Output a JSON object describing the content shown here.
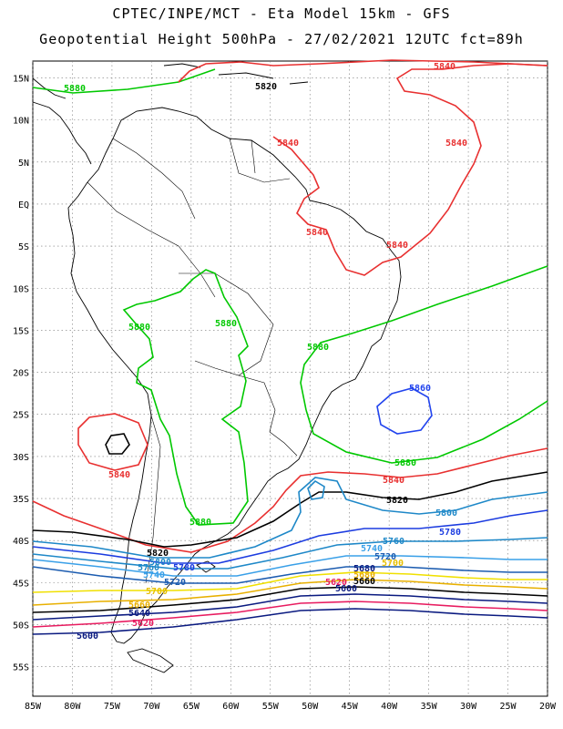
{
  "title": {
    "line1": "CPTEC/INPE/MCT -  Eta Model 15km - GFS",
    "line2": "Geopotential Height 500hPa - 27/02/2021 12UTC fct=89h"
  },
  "axes": {
    "lon_labels": [
      "85W",
      "80W",
      "75W",
      "70W",
      "65W",
      "60W",
      "55W",
      "50W",
      "45W",
      "40W",
      "35W",
      "30W",
      "25W",
      "20W"
    ],
    "lat_labels": [
      "15N",
      "10N",
      "5N",
      "EQ",
      "5S",
      "10S",
      "15S",
      "20S",
      "25S",
      "30S",
      "35S",
      "40S",
      "45S",
      "50S",
      "55S"
    ]
  },
  "contours": [
    {
      "value": "5880",
      "color": "#00c800"
    },
    {
      "value": "5860",
      "color": "#2244ee"
    },
    {
      "value": "5840",
      "color": "#e83030"
    },
    {
      "value": "5820",
      "color": "#000000"
    },
    {
      "value": "5800",
      "color": "#1e88c8"
    },
    {
      "value": "5780",
      "color": "#1c3ce0"
    },
    {
      "value": "5760",
      "color": "#1e88c8"
    },
    {
      "value": "5740",
      "color": "#3aa0e8"
    },
    {
      "value": "5720",
      "color": "#1c5cb0"
    },
    {
      "value": "5700",
      "color": "#f0e000"
    },
    {
      "value": "5680",
      "color": "#e8b000"
    },
    {
      "value": "5660",
      "color": "#000000"
    },
    {
      "value": "5640",
      "color": "#0a1a80"
    },
    {
      "value": "5620",
      "color": "#e81c60"
    },
    {
      "value": "5600",
      "color": "#0a1a80"
    }
  ],
  "labels": {
    "g1": "5880",
    "g2": "5880",
    "g3": "5880",
    "g4": "5880",
    "g5": "5880",
    "g6": "5880",
    "blueHigh": "5860",
    "r1": "5840",
    "r2": "5840",
    "r3": "5840",
    "r4": "5840",
    "r5": "5840",
    "r6": "5840",
    "r7": "5840",
    "k1": "5820",
    "k2": "5820",
    "k3": "5820",
    "c1": "5800",
    "c2": "5800",
    "b1": "5780",
    "b2": "5780",
    "c3": "5760",
    "c4": "5760",
    "s1": "5740",
    "s2": "5740",
    "d1": "5720",
    "d2": "5720",
    "y1": "5700",
    "y2": "5700",
    "o1": "5680",
    "o2": "5680",
    "k4": "5660",
    "k5": "5660",
    "n1": "5640",
    "p1": "5620",
    "p2": "5620",
    "n2": "5600",
    "n3": "5600"
  }
}
